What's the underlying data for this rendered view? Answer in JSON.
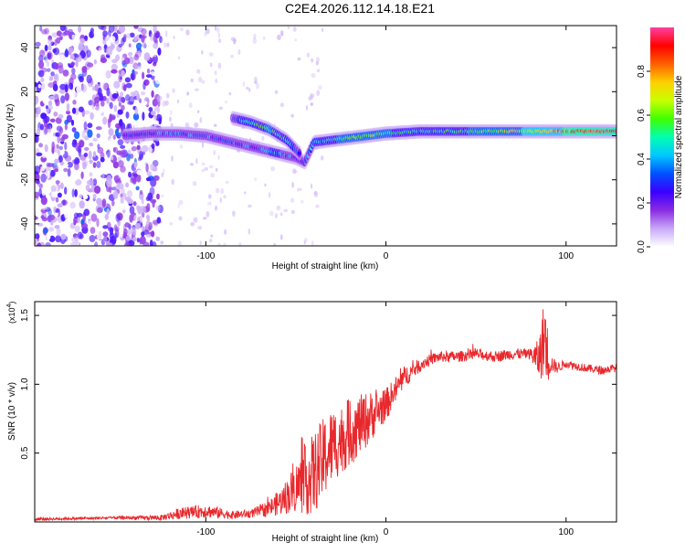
{
  "title": "C2E4.2026.112.14.18.E21",
  "chart_data": [
    {
      "type": "heatmap",
      "id": "spectrogram",
      "xlabel": "Height of straight line (km)",
      "ylabel": "Frequency (Hz)",
      "xlim": [
        -195,
        128
      ],
      "ylim": [
        -50,
        50
      ],
      "x_ticks": [
        -100,
        0,
        100
      ],
      "y_ticks": [
        -40,
        -20,
        0,
        20,
        40
      ],
      "colorbar": {
        "label": "Normalized spectral amplitude",
        "range": [
          0,
          1
        ],
        "ticks": [
          0.0,
          0.2,
          0.4,
          0.6,
          0.8
        ],
        "tick_labels": [
          "0.0",
          "0.2",
          "0.4",
          "0.6",
          "0.8"
        ],
        "colors": [
          "#ffffff",
          "#c8a8f8",
          "#8a2be2",
          "#3a00ff",
          "#0050ff",
          "#00c8ff",
          "#00ffb0",
          "#40ff00",
          "#c8ff00",
          "#ffd000",
          "#ff6000",
          "#ff0000",
          "#ff40a0"
        ]
      },
      "ridge": {
        "x": [
          -145,
          -130,
          -115,
          -100,
          -90,
          -80,
          -70,
          -60,
          -50,
          -45,
          -40,
          -30,
          -20,
          -10,
          0,
          20,
          40,
          60,
          80,
          90,
          100,
          128
        ],
        "y": [
          0,
          1,
          1,
          0,
          -2,
          -4,
          -6,
          -8,
          -10,
          -12,
          -3,
          -2,
          -1,
          0,
          1,
          2,
          2,
          2,
          2,
          2,
          2,
          2
        ],
        "amplitude": [
          0.25,
          0.3,
          0.35,
          0.35,
          0.3,
          0.3,
          0.35,
          0.4,
          0.3,
          0.3,
          0.45,
          0.5,
          0.6,
          0.6,
          0.55,
          0.45,
          0.5,
          0.6,
          0.7,
          0.75,
          0.85,
          0.95
        ]
      },
      "upper_branch": {
        "x": [
          -85,
          -75,
          -65,
          -55,
          -48
        ],
        "y": [
          8,
          6,
          3,
          -2,
          -8
        ],
        "amplitude": [
          0.35,
          0.45,
          0.55,
          0.45,
          0.35
        ]
      },
      "noise_region": {
        "x_from": -195,
        "x_to": -125,
        "amplitude_max": 0.3
      }
    },
    {
      "type": "line",
      "id": "snr",
      "xlabel": "Height of straight line (km)",
      "ylabel": "SNR (10 * v/v)",
      "y_multiplier": "(x10",
      "y_multiplier_exp": "4",
      "y_multiplier_close": ")",
      "xlim": [
        -195,
        128
      ],
      "ylim": [
        0,
        1.6
      ],
      "x_ticks": [
        -100,
        0,
        100
      ],
      "y_ticks": [
        0.5,
        1.0,
        1.5
      ],
      "y_tick_labels": [
        "0.5",
        "1.0",
        "1.5"
      ],
      "color": "#e8282c",
      "series": [
        {
          "name": "SNR",
          "x": [
            -195,
            -150,
            -125,
            -115,
            -100,
            -85,
            -75,
            -65,
            -58,
            -50,
            -45,
            -40,
            -35,
            -30,
            -25,
            -20,
            -15,
            -10,
            -5,
            0,
            5,
            10,
            15,
            20,
            25,
            30,
            40,
            50,
            60,
            70,
            80,
            85,
            88,
            90,
            92,
            95,
            100,
            110,
            120,
            128
          ],
          "y": [
            0.02,
            0.03,
            0.03,
            0.06,
            0.08,
            0.05,
            0.06,
            0.1,
            0.15,
            0.25,
            0.3,
            0.35,
            0.45,
            0.55,
            0.6,
            0.65,
            0.7,
            0.75,
            0.8,
            0.85,
            0.95,
            1.05,
            1.1,
            1.15,
            1.18,
            1.2,
            1.2,
            1.22,
            1.2,
            1.22,
            1.22,
            1.18,
            1.35,
            1.2,
            1.15,
            1.12,
            1.15,
            1.12,
            1.1,
            1.12
          ],
          "noise": [
            0.01,
            0.01,
            0.02,
            0.04,
            0.05,
            0.03,
            0.03,
            0.06,
            0.1,
            0.18,
            0.25,
            0.3,
            0.3,
            0.28,
            0.25,
            0.25,
            0.22,
            0.2,
            0.15,
            0.12,
            0.1,
            0.08,
            0.06,
            0.05,
            0.04,
            0.04,
            0.04,
            0.04,
            0.04,
            0.04,
            0.04,
            0.15,
            0.3,
            0.2,
            0.06,
            0.04,
            0.03,
            0.03,
            0.03,
            0.03
          ]
        }
      ]
    }
  ]
}
